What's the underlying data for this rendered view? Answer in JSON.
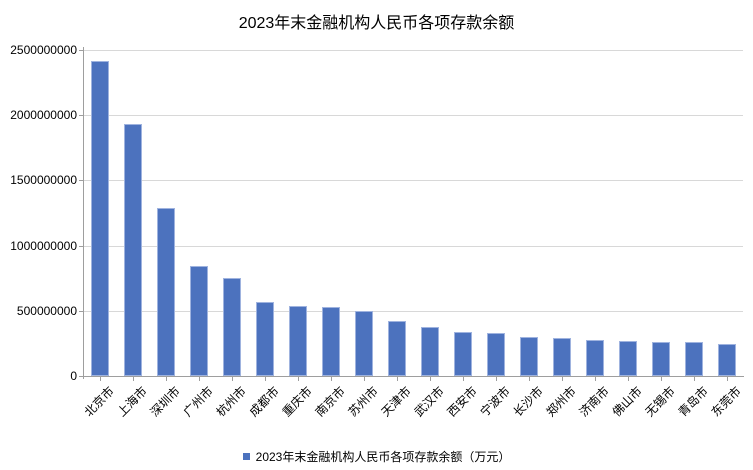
{
  "chart_data": {
    "type": "bar",
    "title": "2023年末金融机构人民币各项存款余额",
    "legend": "2023年末金融机构人民币各项存款余额（万元）",
    "categories": [
      "北京市",
      "上海市",
      "深圳市",
      "广州市",
      "杭州市",
      "成都市",
      "重庆市",
      "南京市",
      "苏州市",
      "天津市",
      "武汉市",
      "西安市",
      "宁波市",
      "长沙市",
      "郑州市",
      "济南市",
      "佛山市",
      "无锡市",
      "青岛市",
      "东莞市"
    ],
    "values": [
      2416000000,
      1930000000,
      1286000000,
      846000000,
      749000000,
      567000000,
      537000000,
      529000000,
      498000000,
      424000000,
      376000000,
      337000000,
      330000000,
      301000000,
      294000000,
      274000000,
      266000000,
      261000000,
      258000000,
      248000000
    ],
    "yticks": [
      0,
      500000000,
      1000000000,
      1500000000,
      2000000000,
      2500000000
    ],
    "ylim": [
      0,
      2500000000
    ],
    "xlabel": "",
    "ylabel": "",
    "grid": true,
    "legend_position": "bottom",
    "bar_color": "#4c72be",
    "bar_border_color": "#9fb3df",
    "gridline_color": "#d8d8d8",
    "axis_color": "#9e9e9e"
  }
}
